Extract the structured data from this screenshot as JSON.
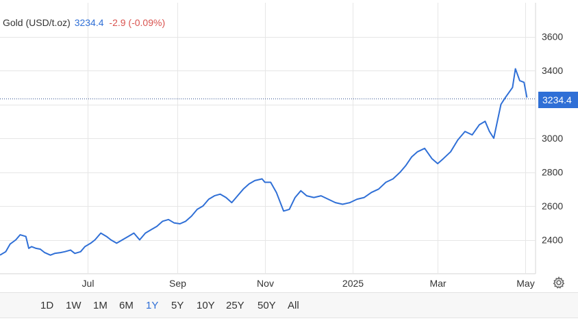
{
  "legend": {
    "name": "Gold (USD/t.oz)",
    "price": "3234.4",
    "change": "-2.9 (-0.09%)"
  },
  "colors": {
    "line": "#2f6fd6",
    "negative": "#d9534f",
    "grid": "#e6e6e6",
    "axis_text": "#333333"
  },
  "price_tag": "3234.4",
  "ranges": [
    {
      "label": "1D",
      "active": false
    },
    {
      "label": "1W",
      "active": false
    },
    {
      "label": "1M",
      "active": false
    },
    {
      "label": "6M",
      "active": false
    },
    {
      "label": "1Y",
      "active": true
    },
    {
      "label": "5Y",
      "active": false
    },
    {
      "label": "10Y",
      "active": false
    },
    {
      "label": "25Y",
      "active": false
    },
    {
      "label": "50Y",
      "active": false
    },
    {
      "label": "All",
      "active": false
    }
  ],
  "chart_data": {
    "type": "line",
    "title": "",
    "xlabel": "",
    "ylabel": "",
    "x_tick_labels": [
      "Jul",
      "Sep",
      "Nov",
      "2025",
      "Mar",
      "May"
    ],
    "x_ticks": [
      "2024-07-01",
      "2024-09-01",
      "2024-11-01",
      "2025-01-01",
      "2025-03-01",
      "2025-05-01"
    ],
    "y_ticks": [
      2400,
      2600,
      2800,
      3000,
      3200,
      3400,
      3600
    ],
    "y_tick_labels": [
      "2400",
      "2600",
      "2800",
      "3000",
      "3400",
      "3600"
    ],
    "ylim": [
      2200,
      3800
    ],
    "xlim": [
      "2024-05-01",
      "2025-05-08"
    ],
    "grid": true,
    "axis_position": "right",
    "last_value": 3234.4,
    "series": [
      {
        "x": [
          "2024-05-01",
          "2024-05-05",
          "2024-05-08",
          "2024-05-12",
          "2024-05-15",
          "2024-05-19",
          "2024-05-21",
          "2024-05-23",
          "2024-05-26",
          "2024-05-29",
          "2024-06-01",
          "2024-06-05",
          "2024-06-08",
          "2024-06-12",
          "2024-06-15",
          "2024-06-19",
          "2024-06-22",
          "2024-06-26",
          "2024-06-29",
          "2024-07-03",
          "2024-07-06",
          "2024-07-10",
          "2024-07-14",
          "2024-07-17",
          "2024-07-21",
          "2024-07-25",
          "2024-07-29",
          "2024-08-02",
          "2024-08-06",
          "2024-08-10",
          "2024-08-14",
          "2024-08-18",
          "2024-08-22",
          "2024-08-26",
          "2024-08-30",
          "2024-09-03",
          "2024-09-07",
          "2024-09-11",
          "2024-09-15",
          "2024-09-19",
          "2024-09-23",
          "2024-09-27",
          "2024-10-01",
          "2024-10-05",
          "2024-10-09",
          "2024-10-13",
          "2024-10-17",
          "2024-10-21",
          "2024-10-25",
          "2024-10-30",
          "2024-11-01",
          "2024-11-05",
          "2024-11-09",
          "2024-11-14",
          "2024-11-18",
          "2024-11-22",
          "2024-11-26",
          "2024-11-30",
          "2024-12-05",
          "2024-12-10",
          "2024-12-15",
          "2024-12-20",
          "2024-12-25",
          "2024-12-30",
          "2025-01-04",
          "2025-01-09",
          "2025-01-14",
          "2025-01-19",
          "2025-01-24",
          "2025-01-29",
          "2025-02-03",
          "2025-02-07",
          "2025-02-11",
          "2025-02-15",
          "2025-02-20",
          "2025-02-25",
          "2025-03-01",
          "2025-03-05",
          "2025-03-10",
          "2025-03-15",
          "2025-03-20",
          "2025-03-25",
          "2025-03-30",
          "2025-04-03",
          "2025-04-06",
          "2025-04-09",
          "2025-04-11",
          "2025-04-14",
          "2025-04-17",
          "2025-04-22",
          "2025-04-24",
          "2025-04-27",
          "2025-04-30",
          "2025-05-02"
        ],
        "y": [
          2310,
          2330,
          2375,
          2400,
          2430,
          2420,
          2350,
          2360,
          2350,
          2345,
          2325,
          2310,
          2320,
          2325,
          2330,
          2340,
          2320,
          2330,
          2360,
          2380,
          2400,
          2440,
          2420,
          2400,
          2380,
          2400,
          2420,
          2440,
          2400,
          2440,
          2460,
          2480,
          2510,
          2520,
          2500,
          2495,
          2510,
          2540,
          2580,
          2600,
          2640,
          2660,
          2670,
          2650,
          2620,
          2660,
          2700,
          2730,
          2750,
          2760,
          2740,
          2740,
          2680,
          2570,
          2580,
          2650,
          2690,
          2660,
          2650,
          2660,
          2640,
          2620,
          2610,
          2620,
          2640,
          2650,
          2680,
          2700,
          2740,
          2760,
          2800,
          2840,
          2890,
          2920,
          2940,
          2880,
          2850,
          2880,
          2920,
          2990,
          3040,
          3020,
          3080,
          3100,
          3040,
          3000,
          3080,
          3200,
          3240,
          3300,
          3410,
          3340,
          3330,
          3240
        ]
      }
    ]
  }
}
